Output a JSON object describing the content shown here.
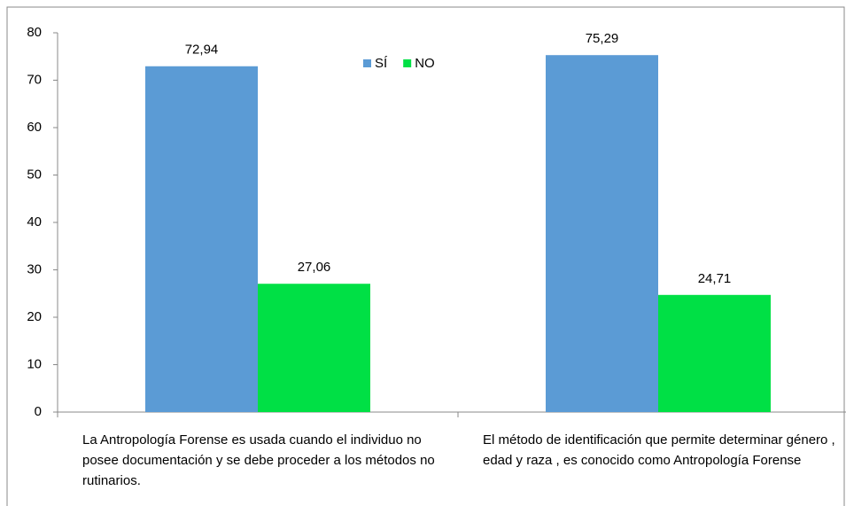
{
  "chart_data": {
    "type": "bar",
    "categories": [
      "La Antropología Forense es usada cuando el individuo no posee documentación y se debe proceder a los métodos no rutinarios.",
      "El método de identificación que permite determinar género , edad y raza , es conocido como Antropología Forense"
    ],
    "series": [
      {
        "name": "SÍ",
        "color": "#5b9bd5",
        "values": [
          72.94,
          75.29
        ],
        "value_labels": [
          "72,94",
          "75,29"
        ]
      },
      {
        "name": "NO",
        "color": "#00e045",
        "values": [
          27.06,
          24.71
        ],
        "value_labels": [
          "27,06",
          "24,71"
        ]
      }
    ],
    "ylim": [
      0,
      80
    ],
    "yticks": [
      0,
      10,
      20,
      30,
      40,
      50,
      60,
      70,
      80
    ],
    "grid": false,
    "legend": "top"
  }
}
